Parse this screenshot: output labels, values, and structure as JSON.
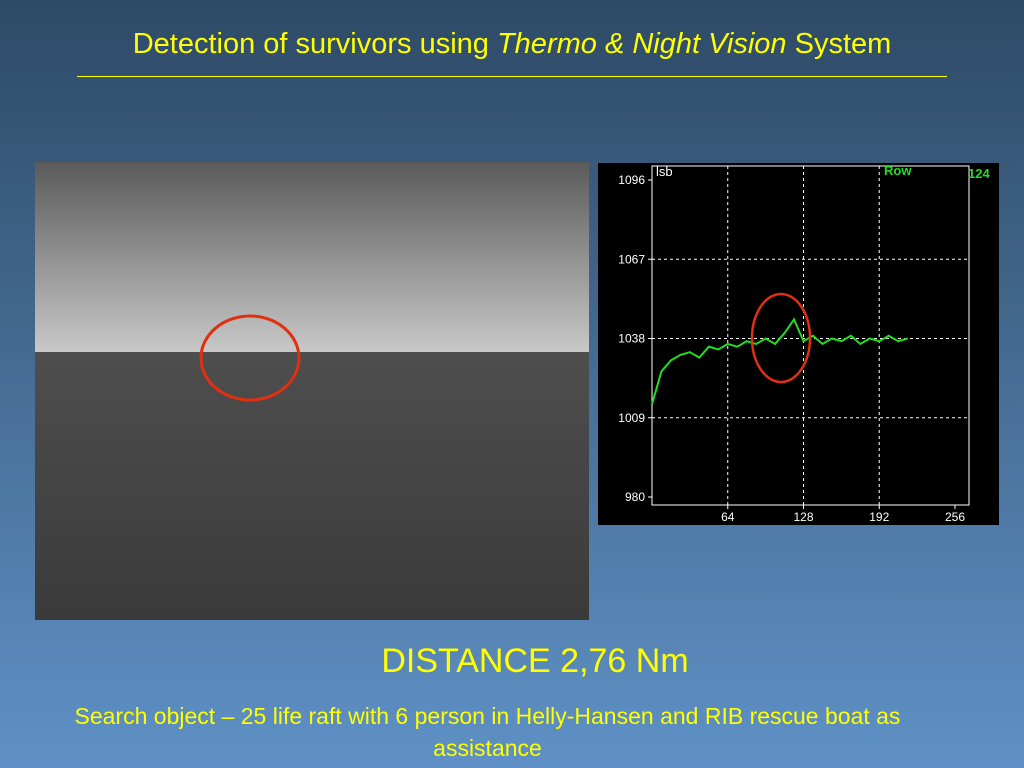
{
  "title": {
    "part1": "Detection of survivors using ",
    "part2": "Thermo & Night Vision",
    "part3": " System"
  },
  "chart_data": {
    "type": "line",
    "y_label": "lsb",
    "row_label": "Row",
    "row_value": "124",
    "x": [
      0,
      8,
      16,
      24,
      32,
      40,
      48,
      56,
      64,
      72,
      80,
      88,
      96,
      104,
      112,
      120,
      128,
      136,
      144,
      152,
      160,
      168,
      176,
      184,
      192,
      200,
      208,
      216
    ],
    "series": [
      {
        "name": "Row",
        "color": "#22dd22",
        "values": [
          1014,
          1026,
          1030,
          1032,
          1033,
          1031,
          1035,
          1034,
          1036,
          1035,
          1037,
          1036,
          1038,
          1036,
          1040,
          1045,
          1037,
          1039,
          1036,
          1038,
          1037,
          1039,
          1036,
          1038,
          1037,
          1039,
          1037,
          1038
        ]
      }
    ],
    "xlim": [
      0,
      256
    ],
    "ylim": [
      980,
      1096
    ],
    "xticks": [
      64,
      128,
      192,
      256
    ],
    "yticks": [
      980,
      1009,
      1038,
      1067,
      1096
    ],
    "grid": true
  },
  "distance": "DISTANCE 2,76 Nm",
  "caption": "Search object – 25 life raft with 6 person in Helly-Hansen and RIB rescue boat as assistance"
}
